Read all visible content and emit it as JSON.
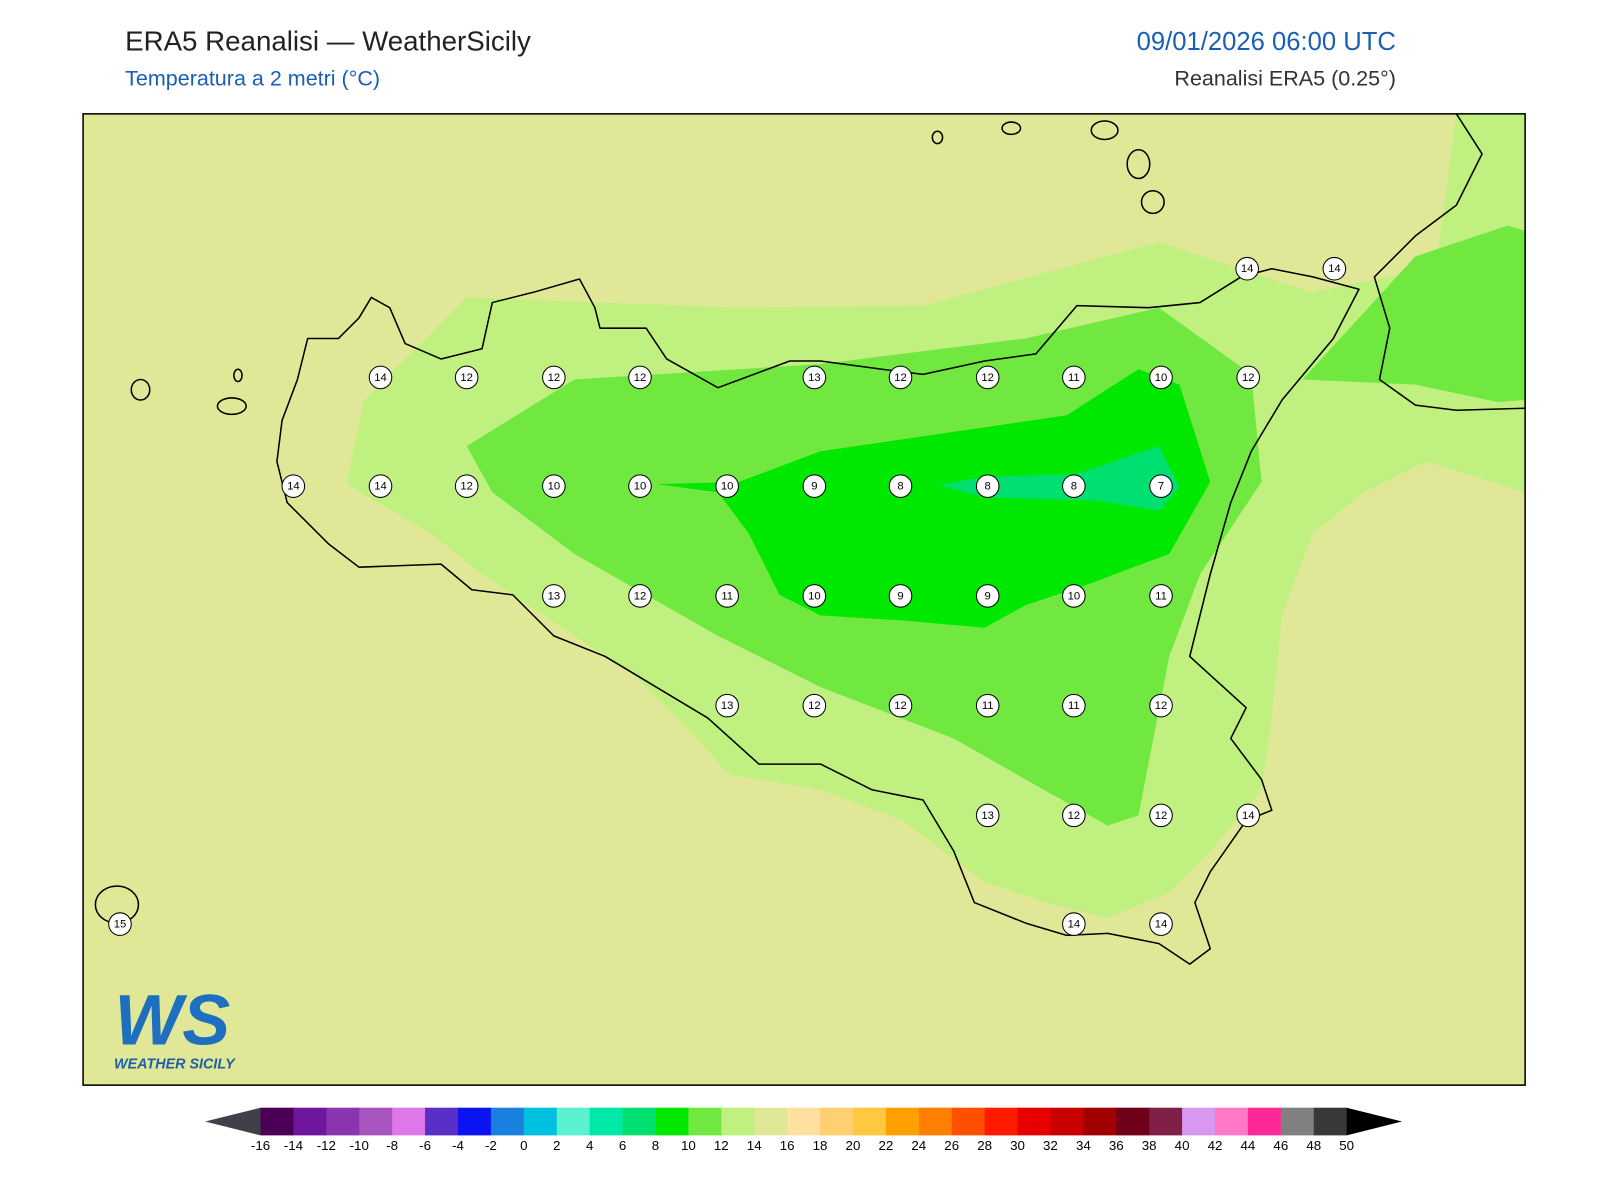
{
  "header": {
    "title": "ERA5 Reanalisi — WeatherSicily",
    "subtitle": "Temperatura a 2 metri (°C)",
    "datetime": "09/01/2026 06:00 UTC",
    "source": "Reanalisi ERA5 (0.25°)"
  },
  "stations": [
    14,
    14,
    14,
    12,
    12,
    12,
    13,
    12,
    12,
    11,
    10,
    12,
    14,
    14,
    12,
    10,
    10,
    10,
    9,
    8,
    8,
    8,
    7,
    13,
    12,
    11,
    10,
    9,
    9,
    10,
    11,
    13,
    12,
    12,
    11,
    11,
    12,
    13,
    12,
    12,
    14,
    15,
    14,
    14
  ],
  "colorbar": {
    "ticks": [
      -16,
      -14,
      -12,
      -10,
      -8,
      -6,
      -4,
      -2,
      0,
      2,
      4,
      6,
      8,
      10,
      12,
      14,
      16,
      18,
      20,
      22,
      24,
      26,
      28,
      30,
      32,
      34,
      36,
      38,
      40,
      42,
      44,
      46,
      48,
      50
    ],
    "colors": [
      "#4b0055",
      "#6e169e",
      "#8a35b0",
      "#a855c0",
      "#de77e8",
      "#5a2fc8",
      "#0a14f0",
      "#1a80e0",
      "#00c0e0",
      "#5af0d0",
      "#00e8a8",
      "#00e070",
      "#00e800",
      "#70e840",
      "#c0f080",
      "#e0e898",
      "#ffe0a0",
      "#ffd070",
      "#ffc840",
      "#ffa000",
      "#ff8000",
      "#ff5000",
      "#ff1a00",
      "#e80000",
      "#c80000",
      "#a00000",
      "#700018",
      "#802048",
      "#d898f0",
      "#ff78c8",
      "#ff2898",
      "#808080",
      "#383838"
    ],
    "under_color": "#404048",
    "over_color": "#000000"
  },
  "logo": {
    "mark": "WS",
    "text": "WEATHER SICILY"
  }
}
